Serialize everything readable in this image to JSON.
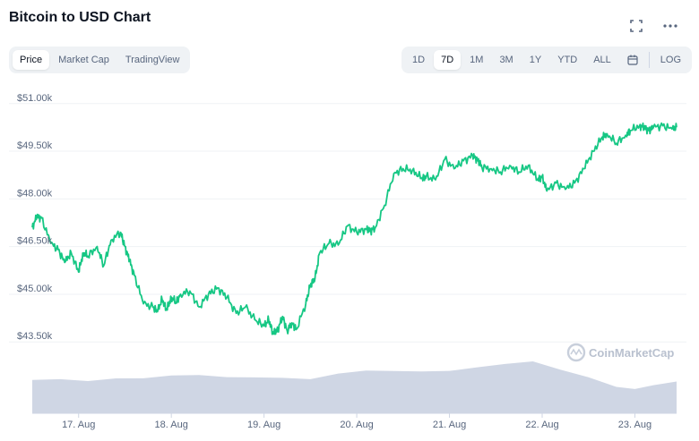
{
  "header": {
    "title": "Bitcoin to USD Chart"
  },
  "icons": {
    "fullscreen": "fullscreen-icon",
    "more": "more-icon",
    "calendar": "calendar-icon"
  },
  "view_tabs": [
    {
      "label": "Price",
      "active": true
    },
    {
      "label": "Market Cap",
      "active": false
    },
    {
      "label": "TradingView",
      "active": false
    }
  ],
  "range_tabs": [
    {
      "label": "1D",
      "active": false
    },
    {
      "label": "7D",
      "active": true
    },
    {
      "label": "1M",
      "active": false
    },
    {
      "label": "3M",
      "active": false
    },
    {
      "label": "1Y",
      "active": false
    },
    {
      "label": "YTD",
      "active": false
    },
    {
      "label": "ALL",
      "active": false
    }
  ],
  "log_label": "LOG",
  "watermark": "CoinMarketCap",
  "colors": {
    "line": "#16c784",
    "volume": "#cfd6e4",
    "grid": "#eff2f5",
    "text_muted": "#58667e"
  },
  "chart_data": {
    "type": "line",
    "title": "Bitcoin to USD Chart",
    "xlabel": "",
    "ylabel": "",
    "grid": true,
    "y_tick_labels": [
      "$51.00k",
      "$49.50k",
      "$48.00k",
      "$46.50k",
      "$45.00k",
      "$43.50k"
    ],
    "y_ticks": [
      51000,
      49500,
      48000,
      46500,
      45000,
      43500
    ],
    "x_tick_labels": [
      "17. Aug",
      "18. Aug",
      "19. Aug",
      "20. Aug",
      "21. Aug",
      "22. Aug",
      "23. Aug"
    ],
    "x_ticks": [
      1,
      2,
      3,
      4,
      5,
      6,
      7
    ],
    "xlim": [
      0.5,
      7.45
    ],
    "ylim": [
      43000,
      51500
    ],
    "series": [
      {
        "x": [
          0.5,
          0.55,
          0.6,
          0.7,
          0.78,
          0.85,
          0.92,
          1.0,
          1.05,
          1.1,
          1.2,
          1.27,
          1.35,
          1.45,
          1.5,
          1.55,
          1.6,
          1.7,
          1.8,
          1.85,
          1.9,
          1.95,
          2.0,
          2.05,
          2.1,
          2.2,
          2.3,
          2.4,
          2.5,
          2.6,
          2.7,
          2.8,
          2.9,
          3.0,
          3.05,
          3.1,
          3.15,
          3.2,
          3.25,
          3.3,
          3.35,
          3.45,
          3.5,
          3.55,
          3.6,
          3.7,
          3.8,
          3.9,
          4.0,
          4.1,
          4.15,
          4.2,
          4.3,
          4.4,
          4.5,
          4.6,
          4.7,
          4.75,
          4.85,
          4.95,
          5.05,
          5.15,
          5.25,
          5.3,
          5.35,
          5.45,
          5.55,
          5.65,
          5.75,
          5.85,
          5.95,
          6.0,
          6.05,
          6.15,
          6.25,
          6.35,
          6.45,
          6.55,
          6.65,
          6.7,
          6.8,
          6.9,
          6.95,
          7.05,
          7.1,
          7.15,
          7.2,
          7.3,
          7.4,
          7.45
        ],
        "values": [
          47100,
          47450,
          47400,
          46600,
          46400,
          46000,
          46300,
          45700,
          46300,
          46200,
          46500,
          45900,
          46700,
          46950,
          46500,
          46050,
          45600,
          44700,
          44600,
          44450,
          44850,
          44500,
          44900,
          44750,
          45000,
          45100,
          44600,
          45000,
          45200,
          44900,
          44400,
          44600,
          44200,
          44000,
          44200,
          43750,
          43900,
          44300,
          43850,
          44100,
          43900,
          44700,
          45300,
          45500,
          46300,
          46600,
          46550,
          47150,
          46950,
          47050,
          47000,
          47100,
          47800,
          48800,
          48950,
          48900,
          48650,
          48700,
          48600,
          49250,
          48950,
          49200,
          49350,
          49250,
          49000,
          48950,
          48850,
          49050,
          48850,
          49050,
          48600,
          48700,
          48250,
          48500,
          48300,
          48500,
          48950,
          49500,
          49950,
          50050,
          49750,
          50000,
          50150,
          50300,
          50250,
          50150,
          50250,
          50300,
          50200,
          50250
        ]
      }
    ],
    "volume": {
      "x": [
        0.5,
        0.8,
        1.1,
        1.4,
        1.7,
        2.0,
        2.3,
        2.6,
        2.9,
        3.2,
        3.5,
        3.8,
        4.1,
        4.4,
        4.7,
        5.0,
        5.3,
        5.6,
        5.9,
        6.2,
        6.5,
        6.8,
        7.0,
        7.2,
        7.45
      ],
      "values": [
        0.62,
        0.63,
        0.61,
        0.64,
        0.66,
        0.7,
        0.71,
        0.68,
        0.66,
        0.67,
        0.63,
        0.74,
        0.8,
        0.78,
        0.79,
        0.78,
        0.86,
        0.92,
        0.96,
        0.82,
        0.66,
        0.5,
        0.45,
        0.52,
        0.6
      ]
    }
  }
}
